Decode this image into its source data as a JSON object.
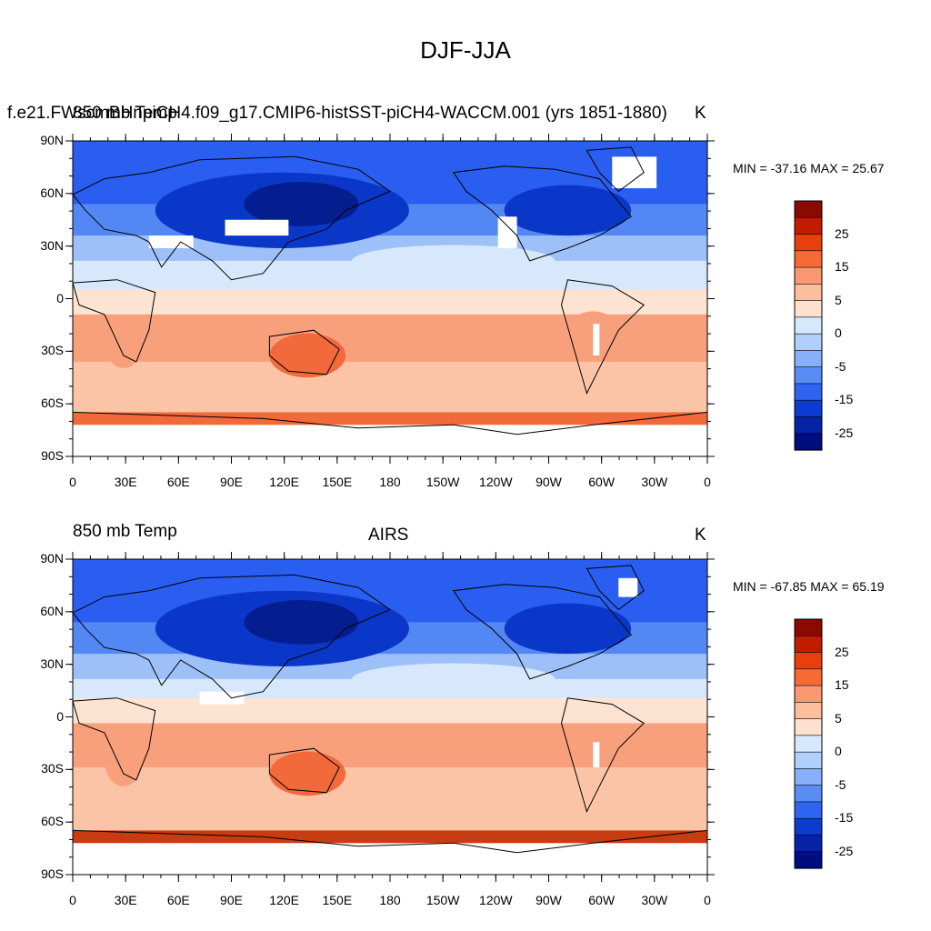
{
  "title": "DJF-JJA",
  "panels": [
    {
      "left_label": "850 mb Temp",
      "center_label": "f.e21.FWscmBHnpiCH4.f09_g17.CMIP6-histSST-piCH4-WACCM.001 (yrs 1851-1880)",
      "right_label": "K",
      "minmax": "MIN = -37.16 MAX =  25.67"
    },
    {
      "left_label": "850 mb Temp",
      "center_label": "AIRS",
      "right_label": "K",
      "minmax": "MIN = -67.85 MAX =  65.19"
    }
  ],
  "axes": {
    "y_ticks": [
      "90N",
      "60N",
      "30N",
      "0",
      "30S",
      "60S",
      "90S"
    ],
    "x_ticks": [
      "0",
      "30E",
      "60E",
      "90E",
      "120E",
      "150E",
      "180",
      "150W",
      "120W",
      "90W",
      "60W",
      "30W",
      "0"
    ]
  },
  "colorbar": {
    "labels": [
      "25",
      "15",
      "5",
      "0",
      "-5",
      "-15",
      "-25"
    ],
    "colors": [
      "#8b0a00",
      "#c21c00",
      "#e8400c",
      "#f76a34",
      "#f99873",
      "#fbbf9e",
      "#fde0cd",
      "#d6e8fc",
      "#b0cffa",
      "#88affa",
      "#5a8cf6",
      "#2f64f2",
      "#0b3ccf",
      "#0523a5",
      "#000d7f"
    ]
  },
  "map_colors": {
    "dark_red": "#c83c12",
    "red": "#f26a3c",
    "salmon": "#f8a07c",
    "light_salmon": "#fbc4a6",
    "cream": "#fde3d2",
    "pale_blue": "#d8e8fc",
    "light_blue": "#9dc0f8",
    "blue": "#5388f4",
    "mid_blue": "#2a5ef0",
    "deep_blue": "#0b37c8",
    "navy": "#041d8f",
    "missing": "#ffffff"
  }
}
